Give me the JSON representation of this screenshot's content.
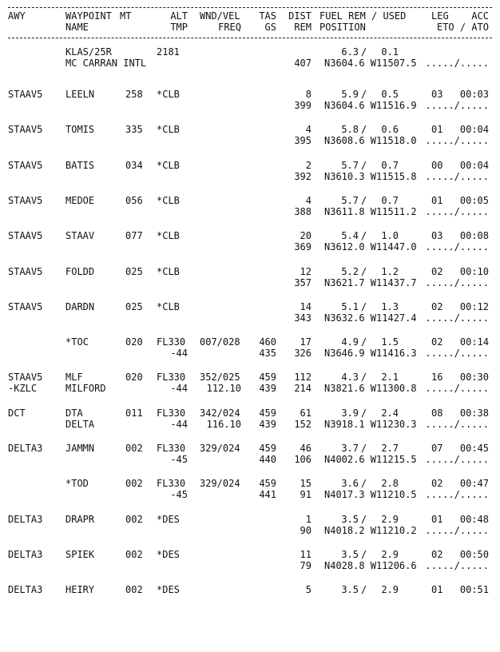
{
  "header": {
    "line1": {
      "awy": "AWY",
      "waypoint": "WAYPOINT",
      "mt": "MT",
      "alt": "ALT",
      "wnd": "WND/VEL",
      "tas": "TAS",
      "dist": "DIST",
      "fuel": "FUEL REM / USED",
      "leg": "LEG",
      "acc": "ACC"
    },
    "line2": {
      "name": "NAME",
      "tmp": "TMP",
      "freq": "FREQ",
      "gs": "GS",
      "rem": "REM",
      "position": "POSITION",
      "eto_ato": "ETO / ATO"
    }
  },
  "rows": [
    {
      "awy": "",
      "awy2": "",
      "wpt": "KLAS/25R",
      "name": "MC CARRAN INTL",
      "mt": "",
      "alt": "2181",
      "tmp": "",
      "wnd": "",
      "freq": "",
      "tas": "",
      "gs": "",
      "dist": "",
      "rem": "407",
      "fuel_rem": "6.3",
      "fuel_used": "0.1",
      "leg": "",
      "eto": "",
      "position": "N3604.6 W11507.5",
      "ato": "...../....."
    },
    {
      "awy": "STAAV5",
      "awy2": "",
      "wpt": "LEELN",
      "name": "",
      "mt": "258",
      "alt": "*CLB",
      "tmp": "",
      "wnd": "",
      "freq": "",
      "tas": "",
      "gs": "",
      "dist": "8",
      "rem": "399",
      "fuel_rem": "5.9",
      "fuel_used": "0.5",
      "leg": "03",
      "eto": "00:03",
      "position": "N3604.6 W11516.9",
      "ato": "...../....."
    },
    {
      "awy": "STAAV5",
      "awy2": "",
      "wpt": "TOMIS",
      "name": "",
      "mt": "335",
      "alt": "*CLB",
      "tmp": "",
      "wnd": "",
      "freq": "",
      "tas": "",
      "gs": "",
      "dist": "4",
      "rem": "395",
      "fuel_rem": "5.8",
      "fuel_used": "0.6",
      "leg": "01",
      "eto": "00:04",
      "position": "N3608.6 W11518.0",
      "ato": "...../....."
    },
    {
      "awy": "STAAV5",
      "awy2": "",
      "wpt": "BATIS",
      "name": "",
      "mt": "034",
      "alt": "*CLB",
      "tmp": "",
      "wnd": "",
      "freq": "",
      "tas": "",
      "gs": "",
      "dist": "2",
      "rem": "392",
      "fuel_rem": "5.7",
      "fuel_used": "0.7",
      "leg": "00",
      "eto": "00:04",
      "position": "N3610.3 W11515.8",
      "ato": "...../....."
    },
    {
      "awy": "STAAV5",
      "awy2": "",
      "wpt": "MEDOE",
      "name": "",
      "mt": "056",
      "alt": "*CLB",
      "tmp": "",
      "wnd": "",
      "freq": "",
      "tas": "",
      "gs": "",
      "dist": "4",
      "rem": "388",
      "fuel_rem": "5.7",
      "fuel_used": "0.7",
      "leg": "01",
      "eto": "00:05",
      "position": "N3611.8 W11511.2",
      "ato": "...../....."
    },
    {
      "awy": "STAAV5",
      "awy2": "",
      "wpt": "STAAV",
      "name": "",
      "mt": "077",
      "alt": "*CLB",
      "tmp": "",
      "wnd": "",
      "freq": "",
      "tas": "",
      "gs": "",
      "dist": "20",
      "rem": "369",
      "fuel_rem": "5.4",
      "fuel_used": "1.0",
      "leg": "03",
      "eto": "00:08",
      "position": "N3612.0 W11447.0",
      "ato": "...../....."
    },
    {
      "awy": "STAAV5",
      "awy2": "",
      "wpt": "FOLDD",
      "name": "",
      "mt": "025",
      "alt": "*CLB",
      "tmp": "",
      "wnd": "",
      "freq": "",
      "tas": "",
      "gs": "",
      "dist": "12",
      "rem": "357",
      "fuel_rem": "5.2",
      "fuel_used": "1.2",
      "leg": "02",
      "eto": "00:10",
      "position": "N3621.7 W11437.7",
      "ato": "...../....."
    },
    {
      "awy": "STAAV5",
      "awy2": "",
      "wpt": "DARDN",
      "name": "",
      "mt": "025",
      "alt": "*CLB",
      "tmp": "",
      "wnd": "",
      "freq": "",
      "tas": "",
      "gs": "",
      "dist": "14",
      "rem": "343",
      "fuel_rem": "5.1",
      "fuel_used": "1.3",
      "leg": "02",
      "eto": "00:12",
      "position": "N3632.6 W11427.4",
      "ato": "...../....."
    },
    {
      "awy": "",
      "awy2": "",
      "wpt": "*TOC",
      "name": "",
      "mt": "020",
      "alt": "FL330",
      "tmp": "-44",
      "wnd": "007/028",
      "freq": "",
      "tas": "460",
      "gs": "435",
      "dist": "17",
      "rem": "326",
      "fuel_rem": "4.9",
      "fuel_used": "1.5",
      "leg": "02",
      "eto": "00:14",
      "position": "N3646.9 W11416.3",
      "ato": "...../....."
    },
    {
      "awy": "STAAV5",
      "awy2": "-KZLC",
      "wpt": "MLF",
      "name": "MILFORD",
      "mt": "020",
      "alt": "FL330",
      "tmp": "-44",
      "wnd": "352/025",
      "freq": "112.10",
      "tas": "459",
      "gs": "439",
      "dist": "112",
      "rem": "214",
      "fuel_rem": "4.3",
      "fuel_used": "2.1",
      "leg": "16",
      "eto": "00:30",
      "position": "N3821.6 W11300.8",
      "ato": "...../....."
    },
    {
      "awy": "DCT",
      "awy2": "",
      "wpt": "DTA",
      "name": "DELTA",
      "mt": "011",
      "alt": "FL330",
      "tmp": "-44",
      "wnd": "342/024",
      "freq": "116.10",
      "tas": "459",
      "gs": "439",
      "dist": "61",
      "rem": "152",
      "fuel_rem": "3.9",
      "fuel_used": "2.4",
      "leg": "08",
      "eto": "00:38",
      "position": "N3918.1 W11230.3",
      "ato": "...../....."
    },
    {
      "awy": "DELTA3",
      "awy2": "",
      "wpt": "JAMMN",
      "name": "",
      "mt": "002",
      "alt": "FL330",
      "tmp": "-45",
      "wnd": "329/024",
      "freq": "",
      "tas": "459",
      "gs": "440",
      "dist": "46",
      "rem": "106",
      "fuel_rem": "3.7",
      "fuel_used": "2.7",
      "leg": "07",
      "eto": "00:45",
      "position": "N4002.6 W11215.5",
      "ato": "...../....."
    },
    {
      "awy": "",
      "awy2": "",
      "wpt": "*TOD",
      "name": "",
      "mt": "002",
      "alt": "FL330",
      "tmp": "-45",
      "wnd": "329/024",
      "freq": "",
      "tas": "459",
      "gs": "441",
      "dist": "15",
      "rem": "91",
      "fuel_rem": "3.6",
      "fuel_used": "2.8",
      "leg": "02",
      "eto": "00:47",
      "position": "N4017.3 W11210.5",
      "ato": "...../....."
    },
    {
      "awy": "DELTA3",
      "awy2": "",
      "wpt": "DRAPR",
      "name": "",
      "mt": "002",
      "alt": "*DES",
      "tmp": "",
      "wnd": "",
      "freq": "",
      "tas": "",
      "gs": "",
      "dist": "1",
      "rem": "90",
      "fuel_rem": "3.5",
      "fuel_used": "2.9",
      "leg": "01",
      "eto": "00:48",
      "position": "N4018.2 W11210.2",
      "ato": "...../....."
    },
    {
      "awy": "DELTA3",
      "awy2": "",
      "wpt": "SPIEK",
      "name": "",
      "mt": "002",
      "alt": "*DES",
      "tmp": "",
      "wnd": "",
      "freq": "",
      "tas": "",
      "gs": "",
      "dist": "11",
      "rem": "79",
      "fuel_rem": "3.5",
      "fuel_used": "2.9",
      "leg": "02",
      "eto": "00:50",
      "position": "N4028.8 W11206.6",
      "ato": "...../....."
    },
    {
      "awy": "DELTA3",
      "awy2": "",
      "wpt": "HEIRY",
      "name": "",
      "mt": "002",
      "alt": "*DES",
      "tmp": "",
      "wnd": "",
      "freq": "",
      "tas": "",
      "gs": "",
      "dist": "5",
      "rem": "",
      "fuel_rem": "3.5",
      "fuel_used": "2.9",
      "leg": "01",
      "eto": "00:51",
      "position": "",
      "ato": ""
    }
  ]
}
